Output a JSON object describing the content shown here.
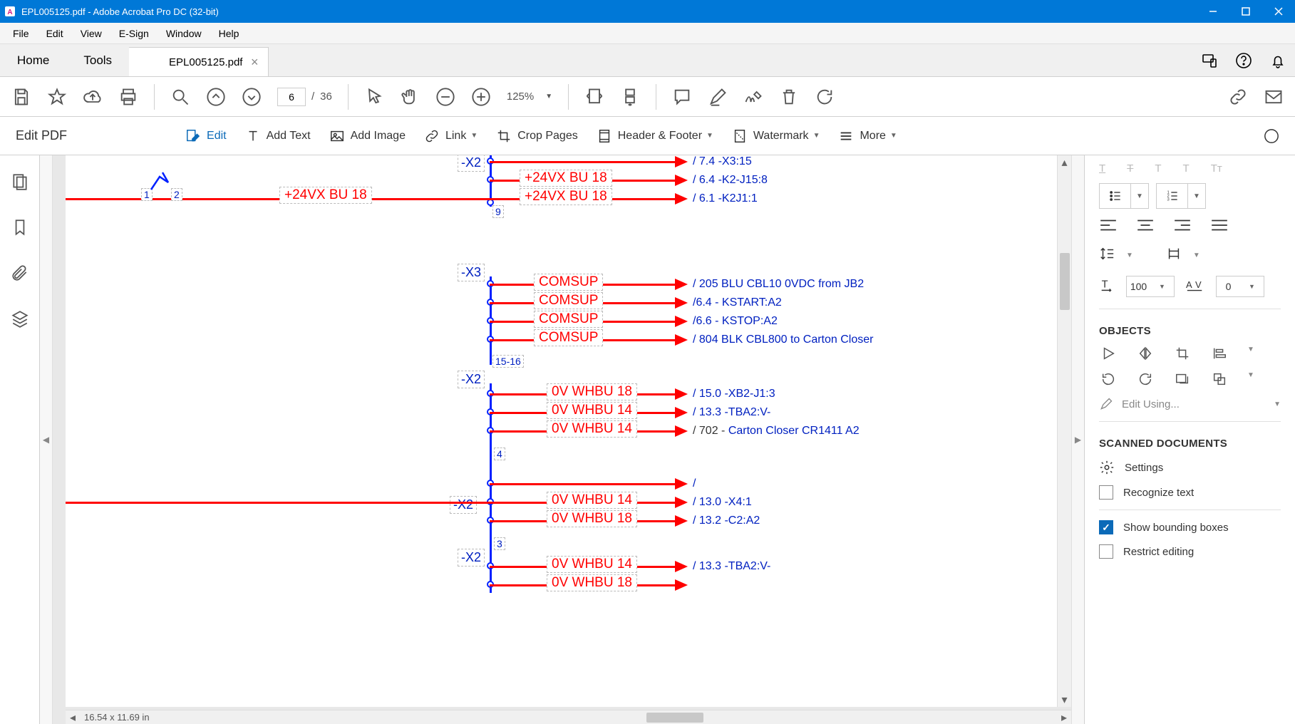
{
  "window": {
    "title": "EPL005125.pdf - Adobe Acrobat Pro DC (32-bit)"
  },
  "menu": {
    "file": "File",
    "edit": "Edit",
    "view": "View",
    "esign": "E-Sign",
    "window": "Window",
    "help": "Help"
  },
  "tabs": {
    "home": "Home",
    "tools": "Tools",
    "doc": "EPL005125.pdf"
  },
  "toolbar": {
    "page_current": "6",
    "page_sep": "/",
    "page_total": "36",
    "zoom": "125%"
  },
  "editbar": {
    "title": "Edit PDF",
    "edit": "Edit",
    "addtext": "Add Text",
    "addimage": "Add Image",
    "link": "Link",
    "crop": "Crop Pages",
    "header": "Header & Footer",
    "watermark": "Watermark",
    "more": "More"
  },
  "status": {
    "dims": "16.54 x 11.69 in"
  },
  "rightpanel": {
    "spacing_val": "100",
    "kerning_val": "0",
    "objects_hdr": "OBJECTS",
    "editusing": "Edit Using...",
    "scanned_hdr": "SCANNED DOCUMENTS",
    "settings": "Settings",
    "recognize": "Recognize text",
    "showbb": "Show bounding boxes",
    "restrict": "Restrict editing"
  },
  "wiring": {
    "colors": {
      "wire": "#ff0000",
      "node": "#0020ff",
      "ref": "#0020c0",
      "pageborder": "#4caf50",
      "dashbox": "#bbbbbb"
    },
    "top_block": {
      "terminal": "-X2",
      "terminal_pin": "9",
      "left_label": "+24VX    BU 18",
      "left_pin1": "1",
      "left_pin2": "2",
      "rows": [
        {
          "l1": "+24VX",
          "l2": "BU 18",
          "ref": "/ 7.4 -X3:15",
          "partial": true
        },
        {
          "l1": "+24VX",
          "l2": "BU 18",
          "ref": "/ 6.4 -K2-J15:8"
        },
        {
          "l1": "+24VX",
          "l2": "BU 18",
          "ref": "/ 6.1 -K2J1:1"
        }
      ]
    },
    "x3_block": {
      "terminal": "-X3",
      "pin": "15-16",
      "rows": [
        {
          "l": "COMSUP",
          "ref": "/ 205 BLU CBL10 0VDC from JB2"
        },
        {
          "l": "COMSUP",
          "ref": "/6.4 - KSTART:A2"
        },
        {
          "l": "COMSUP",
          "ref": "/6.6 - KSTOP:A2"
        },
        {
          "l": "COMSUP",
          "ref": "/ 804 BLK CBL800 to Carton Closer"
        }
      ]
    },
    "x2b_block": {
      "terminal": "-X2",
      "pin": "4",
      "rows": [
        {
          "l1": "0V",
          "l2": "WHBU 18",
          "ref": "/ 15.0 -XB2-J1:3"
        },
        {
          "l1": "0V",
          "l2": "WHBU 14",
          "ref": "/ 13.3 -TBA2:V-"
        },
        {
          "l1": "0V",
          "l2": "WHBU 14",
          "ref_a": "/ 702 - ",
          "ref_b": "Carton Closer CR1411 A2"
        }
      ]
    },
    "x2c_block": {
      "terminal": "-X2",
      "pin": "3",
      "rows": [
        {
          "l1": "",
          "l2": "",
          "ref": "/"
        },
        {
          "l1": "0V",
          "l2": "WHBU 14",
          "ref": "/ 13.0 -X4:1"
        },
        {
          "l1": "0V",
          "l2": "WHBU 18",
          "ref": "/ 13.2 -C2:A2"
        }
      ]
    },
    "x2d_block": {
      "terminal": "-X2",
      "rows": [
        {
          "l1": "0V",
          "l2": "WHBU 14",
          "ref": "/ 13.3 -TBA2:V-"
        },
        {
          "l1": "0V",
          "l2": "WHBU 18",
          "ref": ""
        }
      ]
    }
  }
}
